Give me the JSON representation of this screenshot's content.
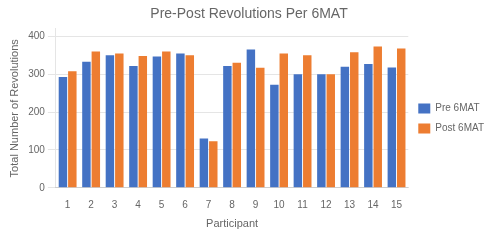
{
  "chart_data": {
    "type": "bar",
    "title": "Pre-Post Revolutions Per 6MAT",
    "xlabel": "Participant",
    "ylabel": "Total Number of Revolutions",
    "categories": [
      "1",
      "2",
      "3",
      "4",
      "5",
      "6",
      "7",
      "8",
      "9",
      "10",
      "11",
      "12",
      "13",
      "14",
      "15"
    ],
    "series": [
      {
        "name": "Pre 6MAT",
        "color": "#4472C4",
        "values": [
          293,
          333,
          350,
          322,
          347,
          355,
          130,
          322,
          365,
          272,
          300,
          300,
          320,
          327,
          318
        ]
      },
      {
        "name": "Post 6MAT",
        "color": "#ED7D31",
        "values": [
          308,
          360,
          355,
          348,
          360,
          350,
          123,
          330,
          317,
          355,
          350,
          300,
          358,
          373,
          368
        ]
      }
    ],
    "ylim": [
      0,
      420
    ],
    "yticks": [
      0,
      100,
      200,
      300,
      400
    ],
    "grid": true,
    "legend": "right"
  }
}
